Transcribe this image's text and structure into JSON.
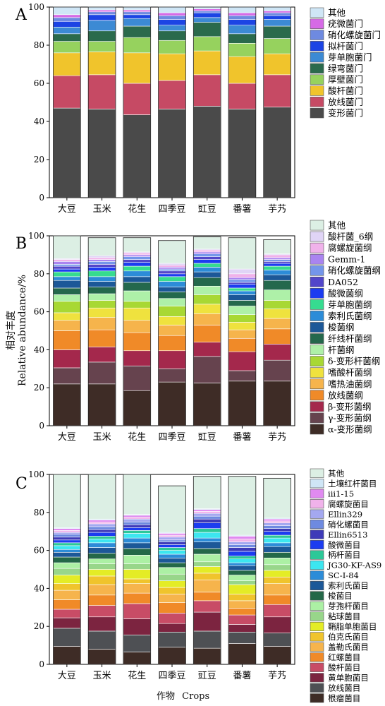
{
  "figure": {
    "ylabel_cn": "相对丰度",
    "ylabel_en": "Relative abundance/%",
    "xlabel_cn": "作物",
    "xlabel_en": "Crops"
  },
  "chart_data": [
    {
      "type": "bar",
      "stacked": true,
      "panel_label": "A",
      "categories": [
        "大豆",
        "玉米",
        "花生",
        "四季豆",
        "豇豆",
        "番薯",
        "芋艿"
      ],
      "ylim": [
        0,
        100
      ],
      "yticks": [
        0,
        20,
        40,
        60,
        80,
        100
      ],
      "legend_position": "right",
      "series": [
        {
          "name": "变形菌门",
          "color": "#4a4a4a",
          "values": [
            47,
            46.5,
            43.5,
            46.5,
            48,
            46.5,
            47.5
          ]
        },
        {
          "name": "放线菌门",
          "color": "#c64a64",
          "values": [
            17,
            18,
            16.5,
            15,
            16.5,
            13.5,
            17
          ]
        },
        {
          "name": "酸杆菌门",
          "color": "#f0c42c",
          "values": [
            12,
            12,
            16,
            14,
            12.5,
            14,
            11
          ]
        },
        {
          "name": "厚壁菌门",
          "color": "#96d25e",
          "values": [
            6,
            5.5,
            8,
            7,
            7.5,
            7,
            8
          ]
        },
        {
          "name": "绿弯菌门",
          "color": "#2a6a4c",
          "values": [
            4,
            5.5,
            6,
            5,
            7.5,
            5,
            6.5
          ]
        },
        {
          "name": "芽单胞菌门",
          "color": "#3c8ad4",
          "values": [
            3.5,
            5.5,
            4,
            3,
            2.5,
            4.5,
            3.5
          ]
        },
        {
          "name": "拟杆菌门",
          "color": "#1c44e4",
          "values": [
            3,
            3,
            2,
            3,
            2.5,
            3,
            2
          ]
        },
        {
          "name": "硝化螺旋菌门",
          "color": "#6e8ae0",
          "values": [
            2,
            1.5,
            1.5,
            2,
            1,
            2,
            1.5
          ]
        },
        {
          "name": "疣微菌门",
          "color": "#d66ae6",
          "values": [
            1.5,
            1,
            1,
            1.5,
            1,
            1.5,
            1
          ]
        },
        {
          "name": "其他",
          "color": "#cfe6f6",
          "values": [
            4,
            1.5,
            1.5,
            3,
            1,
            3,
            2
          ]
        }
      ]
    },
    {
      "type": "bar",
      "stacked": true,
      "panel_label": "B",
      "categories": [
        "大豆",
        "玉米",
        "花生",
        "四季豆",
        "豇豆",
        "番薯",
        "芋艿"
      ],
      "ylim": [
        0,
        100
      ],
      "yticks": [
        0,
        20,
        40,
        60,
        80,
        100
      ],
      "legend_position": "right",
      "series": [
        {
          "name": "α-变形菌纲",
          "color": "#3e2c26",
          "values": [
            22,
            22,
            18.5,
            23,
            22.5,
            23.5,
            23.5
          ]
        },
        {
          "name": "γ-变形菌纲",
          "color": "#66434e",
          "values": [
            8.5,
            11.5,
            13,
            7,
            14,
            5.5,
            11
          ]
        },
        {
          "name": "β-变形菌纲",
          "color": "#a4284c",
          "values": [
            9.5,
            8,
            8,
            9.5,
            7.5,
            10,
            8.5
          ]
        },
        {
          "name": "放线菌纲",
          "color": "#f08a28",
          "values": [
            10,
            9,
            9.5,
            8,
            9,
            7,
            8
          ]
        },
        {
          "name": "嗜热油菌纲",
          "color": "#f6b44c",
          "values": [
            5.5,
            6.5,
            6.5,
            5.5,
            6,
            4.5,
            5.5
          ]
        },
        {
          "name": "嗜酸杆菌纲",
          "color": "#efe23e",
          "values": [
            4,
            5,
            6.5,
            4.5,
            5,
            4,
            5
          ]
        },
        {
          "name": "δ-变形杆菌纲",
          "color": "#a8d834",
          "values": [
            6,
            4,
            3.5,
            5.5,
            5,
            4,
            4.5
          ]
        },
        {
          "name": "杆菌纲",
          "color": "#aef0a8",
          "values": [
            3.5,
            3.5,
            5.5,
            4,
            4.5,
            4.5,
            5.5
          ]
        },
        {
          "name": "纤线杆菌纲",
          "color": "#24684c",
          "values": [
            3.5,
            3.5,
            4.5,
            3.5,
            4.5,
            3,
            5
          ]
        },
        {
          "name": "梭菌纲",
          "color": "#1c5898",
          "values": [
            4,
            3,
            3,
            2.5,
            3,
            3,
            3
          ]
        },
        {
          "name": "索利氏菌纲",
          "color": "#2c8cd8",
          "values": [
            2,
            2.5,
            3,
            3,
            2.5,
            2,
            2.5
          ]
        },
        {
          "name": "芽单胞菌纲",
          "color": "#36dc90",
          "values": [
            2.5,
            3,
            2.5,
            2.5,
            2,
            1.5,
            2
          ]
        },
        {
          "name": "酸微菌纲",
          "color": "#1c3cf0",
          "values": [
            1.5,
            2,
            2,
            1.5,
            2,
            2,
            1.5
          ]
        },
        {
          "name": "DA052",
          "color": "#5246ca",
          "values": [
            1.5,
            1.5,
            1.5,
            1.5,
            1.5,
            1,
            1
          ]
        },
        {
          "name": "硝化螺旋菌纲",
          "color": "#7496ea",
          "values": [
            1,
            1.5,
            1.5,
            1,
            1.5,
            1.5,
            1
          ]
        },
        {
          "name": "Gemm-1",
          "color": "#aa84f0",
          "values": [
            1.5,
            1,
            1,
            1,
            1,
            1,
            1
          ]
        },
        {
          "name": "腐螺旋菌纲",
          "color": "#f0b2ea",
          "values": [
            1,
            1,
            1,
            1,
            1,
            2,
            1.5
          ]
        },
        {
          "name": "酸杆菌_6纲",
          "color": "#e0d4f6",
          "values": [
            0.5,
            1,
            0.5,
            1,
            0.5,
            2.5,
            0.5
          ]
        },
        {
          "name": "其他",
          "color": "#dcefe4",
          "values": [
            12,
            9.5,
            7.5,
            12,
            6.5,
            16.5,
            7.5
          ]
        }
      ]
    },
    {
      "type": "bar",
      "stacked": true,
      "panel_label": "C",
      "categories": [
        "大豆",
        "玉米",
        "花生",
        "四季豆",
        "豇豆",
        "番薯",
        "芋艿"
      ],
      "ylim": [
        0,
        100
      ],
      "yticks": [
        0,
        20,
        40,
        60,
        80,
        100
      ],
      "legend_position": "right",
      "series": [
        {
          "name": "根瘤菌目",
          "color": "#3e2c26",
          "values": [
            9.5,
            8,
            6.5,
            9,
            8.5,
            11,
            9.5
          ]
        },
        {
          "name": "放线菌目",
          "color": "#4e5054",
          "values": [
            9.5,
            9.5,
            9,
            8,
            9,
            6,
            7
          ]
        },
        {
          "name": "黄单胞菌目",
          "color": "#7c2440",
          "values": [
            5.5,
            7.5,
            8.5,
            4.5,
            10,
            4,
            8.5
          ]
        },
        {
          "name": "酸杆菌目",
          "color": "#c84c66",
          "values": [
            4.5,
            6,
            8,
            5.5,
            6,
            5,
            6.5
          ]
        },
        {
          "name": "红螺菌目",
          "color": "#f08a28",
          "values": [
            5,
            5.5,
            5.5,
            5.5,
            4.5,
            3.5,
            5
          ]
        },
        {
          "name": "盖勒氏菌目",
          "color": "#f6b44c",
          "values": [
            5,
            5.5,
            5,
            4.5,
            6.5,
            4,
            6
          ]
        },
        {
          "name": "伯克氏菌目",
          "color": "#f0c42c",
          "values": [
            3.5,
            4.5,
            2.5,
            3.5,
            3.5,
            3.5,
            3.5
          ]
        },
        {
          "name": "鞘脂单胞菌目",
          "color": "#e4ec26",
          "values": [
            4.5,
            3.5,
            5,
            3.5,
            3.5,
            5,
            3.5
          ]
        },
        {
          "name": "粘球菌目",
          "color": "#98d68a",
          "values": [
            3.5,
            3,
            3,
            3.5,
            2.5,
            2,
            3
          ]
        },
        {
          "name": "芽孢杆菌目",
          "color": "#acf0a4",
          "values": [
            3,
            2.5,
            4.5,
            3.5,
            4,
            3,
            3.5
          ]
        },
        {
          "name": "梭菌目",
          "color": "#246848",
          "values": [
            3,
            3,
            3.5,
            2.5,
            3,
            2.5,
            3
          ]
        },
        {
          "name": "索利氏菌目",
          "color": "#1c5898",
          "values": [
            2.5,
            3,
            3,
            2.5,
            3.5,
            2.5,
            3
          ]
        },
        {
          "name": "SC-I-84",
          "color": "#2c8cd8",
          "values": [
            1.5,
            2.5,
            2.5,
            2,
            2,
            1.5,
            2
          ]
        },
        {
          "name": "JG30-KF-AS9",
          "color": "#3ce6f0",
          "values": [
            2,
            2,
            2.5,
            2,
            3,
            2,
            2.5
          ]
        },
        {
          "name": "柄杆菌目",
          "color": "#2cc898",
          "values": [
            1.5,
            1.5,
            1.5,
            1.5,
            2,
            1.5,
            1.5
          ]
        },
        {
          "name": "酸微菌目",
          "color": "#1c3cf0",
          "values": [
            1.5,
            2,
            1.5,
            1.5,
            3,
            2.5,
            2
          ]
        },
        {
          "name": "Ellin6513",
          "color": "#3e3ab8",
          "values": [
            1.5,
            1.5,
            1.5,
            1.5,
            2,
            2,
            1.5
          ]
        },
        {
          "name": "硝化螺菌目",
          "color": "#6e8ae0",
          "values": [
            1.5,
            1.5,
            1.5,
            1,
            1.5,
            1.5,
            1.5
          ]
        },
        {
          "name": "Ellin329",
          "color": "#a4a8f0",
          "values": [
            1,
            1.5,
            1.5,
            1.5,
            1.5,
            1.5,
            1.5
          ]
        },
        {
          "name": "腐螺旋菌目",
          "color": "#f0b2ea",
          "values": [
            1,
            1,
            1,
            1,
            1,
            1.5,
            1
          ]
        },
        {
          "name": "iii1-15",
          "color": "#e08af0",
          "values": [
            1,
            1,
            1,
            1,
            1,
            1.5,
            1
          ]
        },
        {
          "name": "土壤红杆菌目",
          "color": "#cfe6f6",
          "values": [
            0.5,
            0.5,
            0.5,
            0.5,
            0.5,
            0.5,
            0.5
          ]
        },
        {
          "name": "其他",
          "color": "#dcefe4",
          "values": [
            28,
            23.5,
            21,
            24.5,
            17,
            31,
            21
          ]
        }
      ]
    }
  ]
}
